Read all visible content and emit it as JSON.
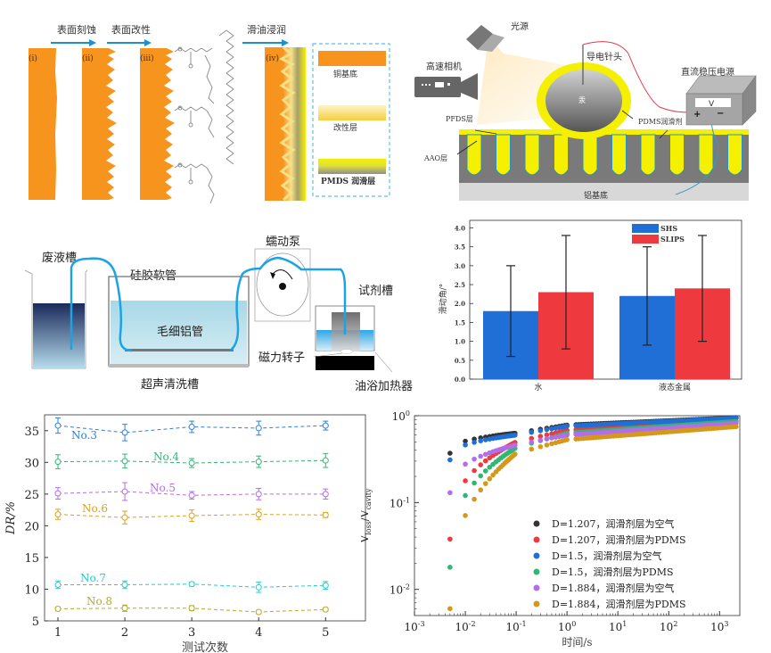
{
  "panel_a": {
    "steps": [
      "表面刻蚀",
      "表面改性",
      "滑油浸润"
    ],
    "stage_labels": [
      "(i)",
      "(ii)",
      "(iii)",
      "(iv)"
    ],
    "legend": [
      "铜基底",
      "改性层",
      "PMDS 润滑层"
    ],
    "colors": {
      "substrate": "#f7941d",
      "modified": "#f6e08a",
      "lubricant": "#f2ec00",
      "arrow": "#1a8fd6",
      "legend_border": "#5bc0eb"
    }
  },
  "panel_b": {
    "labels": {
      "light_source": "光源",
      "camera": "高速相机",
      "needle": "导电针头",
      "power_supply": "直流稳压电源",
      "voltmeter": "V",
      "plus": "+",
      "minus": "−",
      "droplet": "汞",
      "pfds": "PFDS层",
      "aao": "AAO层",
      "pdms": "PDMS润滑剂",
      "substrate": "铝基底"
    }
  },
  "panel_c": {
    "labels": {
      "waste_tank": "废液槽",
      "silicone_tube": "硅胶软管",
      "pump": "蠕动泵",
      "reagent_tank": "试剂槽",
      "capillary": "毛细铝管",
      "stirrer": "磁力转子",
      "ultrasonic": "超声清洗槽",
      "oil_bath": "油浴加热器"
    }
  },
  "chart_data": [
    {
      "id": "sliding-angle",
      "type": "bar",
      "title": "",
      "xlabel": "",
      "ylabel": "滑动角/°",
      "categories": [
        "水",
        "液态金属"
      ],
      "series": [
        {
          "name": "SHS",
          "color": "#1f6fd6",
          "values": [
            1.8,
            2.2
          ],
          "err_low": [
            0.6,
            0.9
          ],
          "err_high": [
            3.0,
            3.5
          ]
        },
        {
          "name": "SLIPS",
          "color": "#ee3a3f",
          "values": [
            2.3,
            2.4
          ],
          "err_low": [
            0.8,
            1.0
          ],
          "err_high": [
            3.8,
            3.8
          ]
        }
      ],
      "ylim": [
        0,
        4.2
      ],
      "yticks": [
        "0.0",
        "0.5",
        "1.0",
        "1.5",
        "2.0",
        "2.5",
        "3.0",
        "3.5",
        "4.0"
      ],
      "legend": "top-right"
    },
    {
      "id": "drag-reduction",
      "type": "line",
      "title": "",
      "xlabel": "测试次数",
      "ylabel": "DR/%",
      "x": [
        1,
        2,
        3,
        4,
        5
      ],
      "xticks": [
        "1",
        "2",
        "3",
        "4",
        "5"
      ],
      "yticks": [
        "5",
        "10",
        "15",
        "20",
        "25",
        "30",
        "35"
      ],
      "ylim": [
        5,
        37.5
      ],
      "series": [
        {
          "name": "No.3",
          "color": "#2f7fe0",
          "values": [
            35.8,
            34.7,
            35.6,
            35.4,
            35.8
          ],
          "err": [
            1.2,
            1.3,
            0.9,
            1.1,
            0.7
          ]
        },
        {
          "name": "No.4",
          "color": "#2eb873",
          "values": [
            30.1,
            30.2,
            29.9,
            30.1,
            30.3
          ],
          "err": [
            1.1,
            1.1,
            0.7,
            0.9,
            1.1
          ]
        },
        {
          "name": "No.5",
          "color": "#b46de8",
          "values": [
            25.1,
            25.4,
            24.8,
            25.0,
            25.0
          ],
          "err": [
            0.9,
            1.4,
            0.6,
            0.9,
            0.8
          ]
        },
        {
          "name": "No.6",
          "color": "#d9a21a",
          "values": [
            21.8,
            21.3,
            21.6,
            21.8,
            21.7
          ],
          "err": [
            0.8,
            1.0,
            0.9,
            0.8,
            0.4
          ]
        },
        {
          "name": "No.7",
          "color": "#1dcfcf",
          "values": [
            10.7,
            10.7,
            10.8,
            10.3,
            10.6
          ],
          "err": [
            0.6,
            0.6,
            0.3,
            0.8,
            0.6
          ]
        },
        {
          "name": "No.8",
          "color": "#b8a82a",
          "values": [
            6.9,
            7.0,
            7.0,
            6.4,
            6.8
          ],
          "err": [
            0.3,
            0.5,
            0.4,
            0.3,
            0.3
          ]
        }
      ]
    },
    {
      "id": "volume-loss",
      "type": "scatter",
      "title": "",
      "xlabel": "时间/s",
      "ylabel": "V_loss/V_cavity",
      "xscale": "log",
      "yscale": "log",
      "xlim": [
        0.001,
        2500
      ],
      "ylim": [
        0.005,
        1.0
      ],
      "xticks": [
        "10^-3",
        "10^-2",
        "10^-1",
        "10^0",
        "10^1",
        "10^2",
        "10^3"
      ],
      "yticks": [
        "10^-2",
        "10^-1",
        "10^0"
      ],
      "legend": "bottom-right",
      "series": [
        {
          "name": "D=1.207，润滑剂层为空气",
          "color": "#333333",
          "y0": 0.37,
          "y_01": 0.63,
          "y_1": 0.78,
          "y_end": 0.95
        },
        {
          "name": "D=1.207，润滑剂层为PDMS",
          "color": "#ee3a3f",
          "y0": 0.038,
          "y_01": 0.5,
          "y_1": 0.68,
          "y_end": 0.87
        },
        {
          "name": "D=1.5，润滑剂层为空气",
          "color": "#1f6fd6",
          "y0": 0.31,
          "y_01": 0.6,
          "y_1": 0.76,
          "y_end": 0.94
        },
        {
          "name": "D=1.5，润滑剂层为PDMS",
          "color": "#2eb873",
          "y0": 0.018,
          "y_01": 0.43,
          "y_1": 0.63,
          "y_end": 0.86
        },
        {
          "name": "D=1.884，润滑剂层为空气",
          "color": "#b46de8",
          "y0": 0.13,
          "y_01": 0.46,
          "y_1": 0.6,
          "y_end": 0.82
        },
        {
          "name": "D=1.884，润滑剂层为PDMS",
          "color": "#d4991a",
          "y0": 0.006,
          "y_01": 0.37,
          "y_1": 0.53,
          "y_end": 0.75
        }
      ]
    }
  ]
}
